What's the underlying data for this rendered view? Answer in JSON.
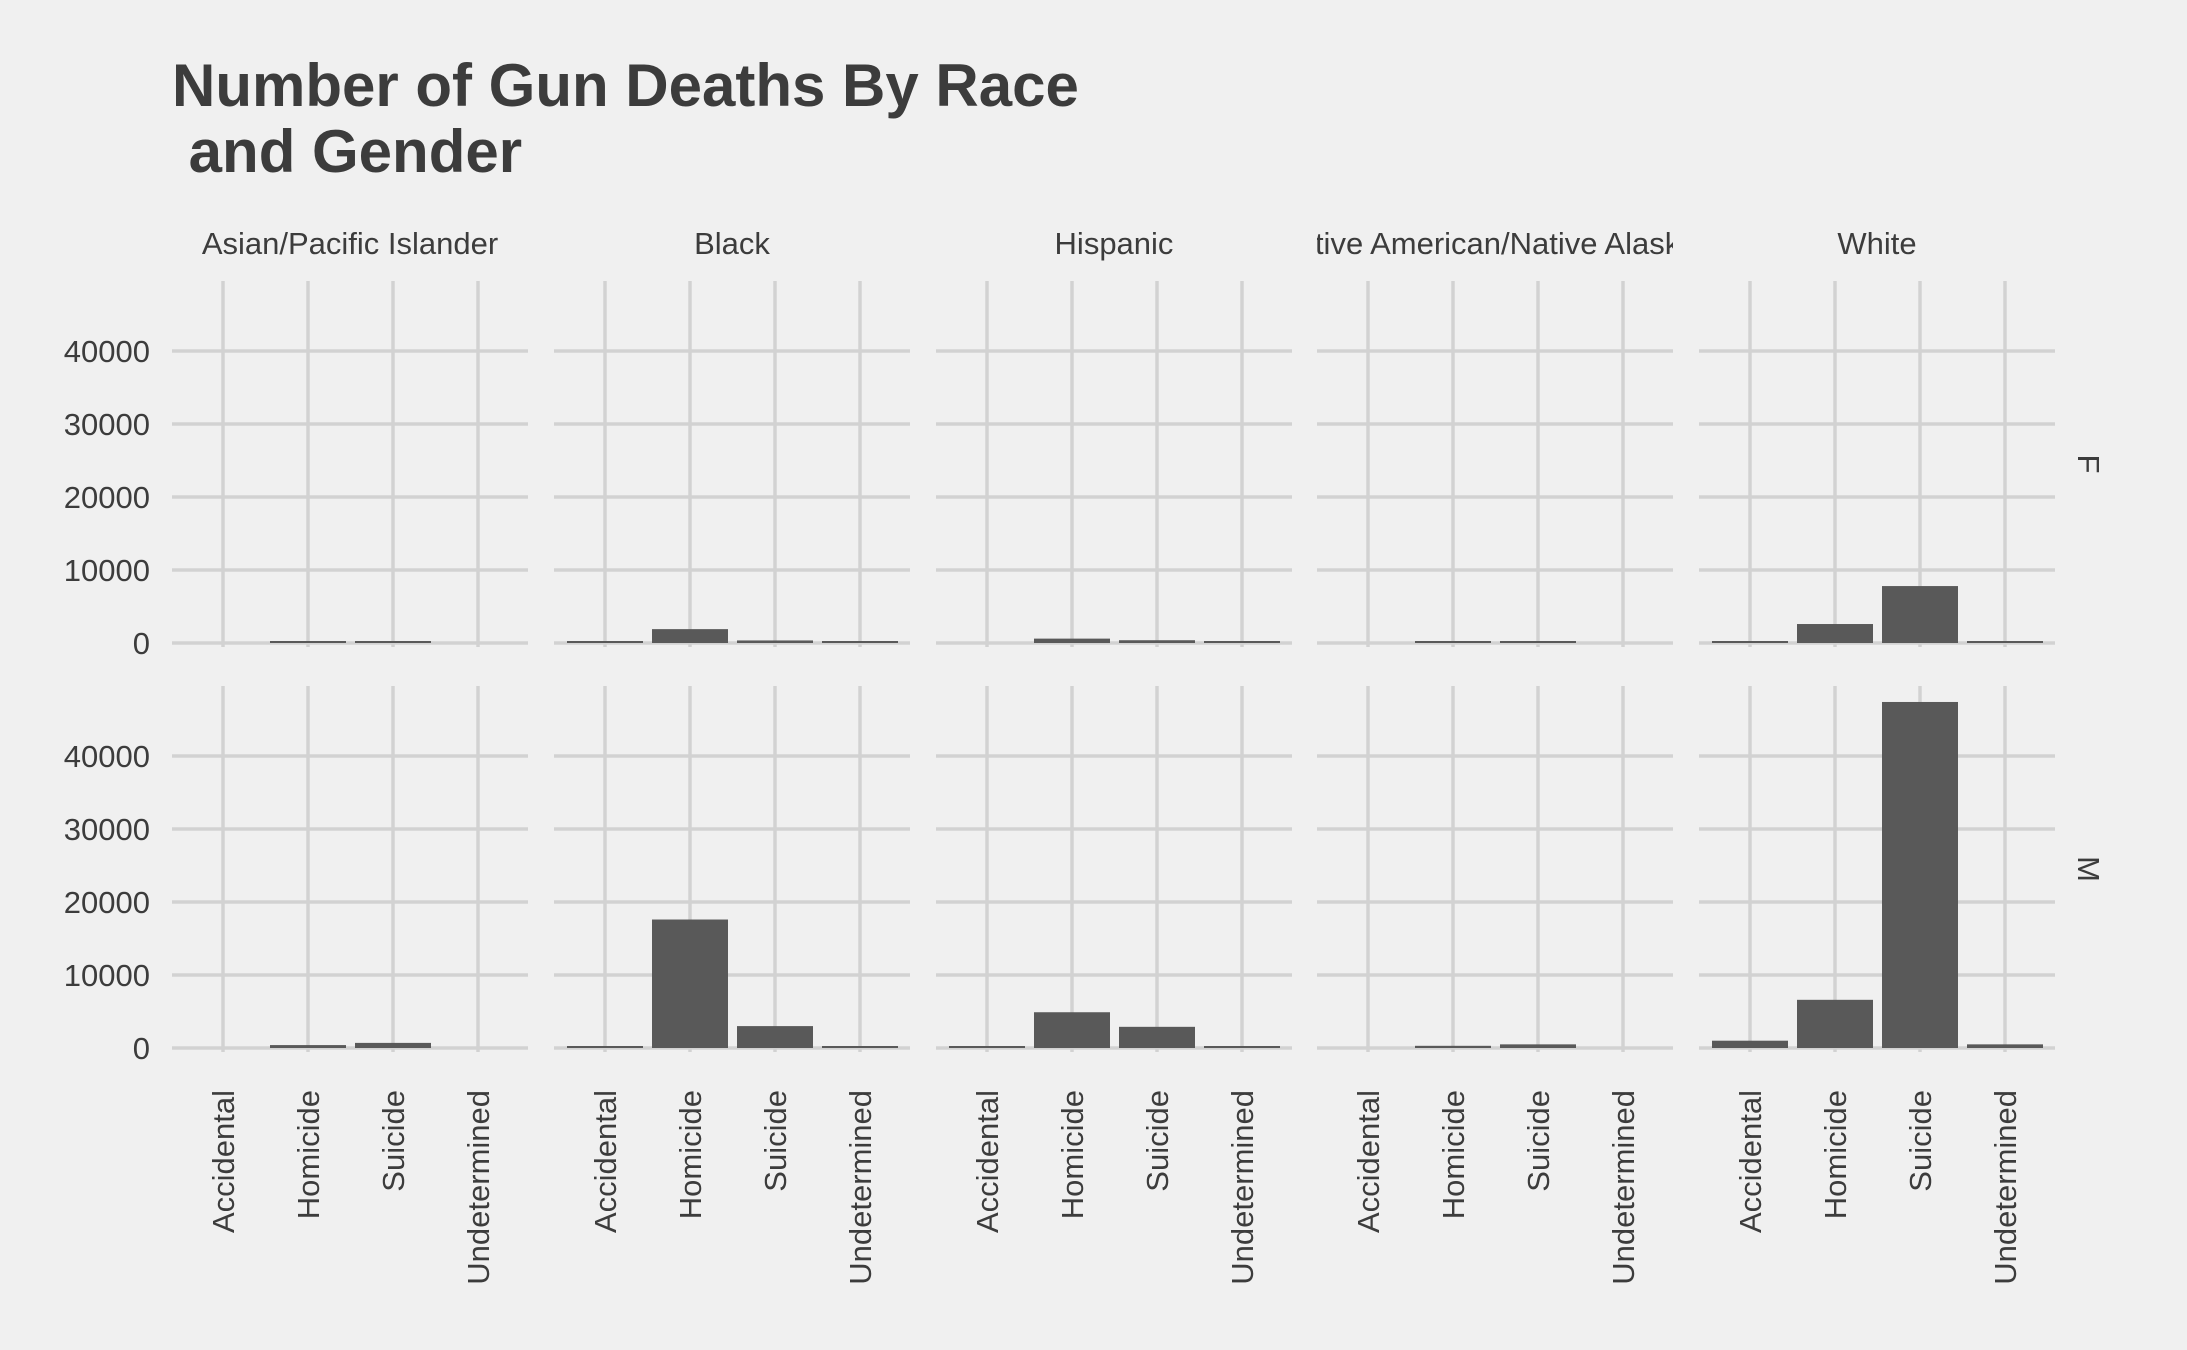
{
  "chart_data": {
    "type": "bar",
    "title_lines": [
      "Number of Gun Deaths By Race",
      " and Gender"
    ],
    "facet_columns": [
      "Asian/Pacific Islander",
      "Black",
      "Hispanic",
      "Native American/Native Alaskan",
      "White"
    ],
    "facet_rows": [
      "F",
      "M"
    ],
    "categories": [
      "Accidental",
      "Homicide",
      "Suicide",
      "Undetermined"
    ],
    "y_ticks": [
      0,
      10000,
      20000,
      30000,
      40000
    ],
    "ylim": [
      0,
      50000
    ],
    "grid": true,
    "panels": [
      {
        "column": "Asian/Pacific Islander",
        "row": "F",
        "values": [
          0,
          130,
          150,
          0
        ]
      },
      {
        "column": "Black",
        "row": "F",
        "values": [
          50,
          1900,
          350,
          70
        ]
      },
      {
        "column": "Hispanic",
        "row": "F",
        "values": [
          0,
          600,
          380,
          60
        ]
      },
      {
        "column": "Native American/Native Alaskan",
        "row": "F",
        "values": [
          0,
          110,
          120,
          0
        ]
      },
      {
        "column": "White",
        "row": "F",
        "values": [
          200,
          2600,
          7800,
          180
        ]
      },
      {
        "column": "Asian/Pacific Islander",
        "row": "M",
        "values": [
          0,
          400,
          700,
          0
        ]
      },
      {
        "column": "Black",
        "row": "M",
        "values": [
          250,
          17600,
          3000,
          200
        ]
      },
      {
        "column": "Hispanic",
        "row": "M",
        "values": [
          150,
          4900,
          2900,
          100
        ]
      },
      {
        "column": "Native American/Native Alaskan",
        "row": "M",
        "values": [
          0,
          300,
          500,
          0
        ]
      },
      {
        "column": "White",
        "row": "M",
        "values": [
          1000,
          6600,
          47400,
          500
        ]
      }
    ]
  }
}
